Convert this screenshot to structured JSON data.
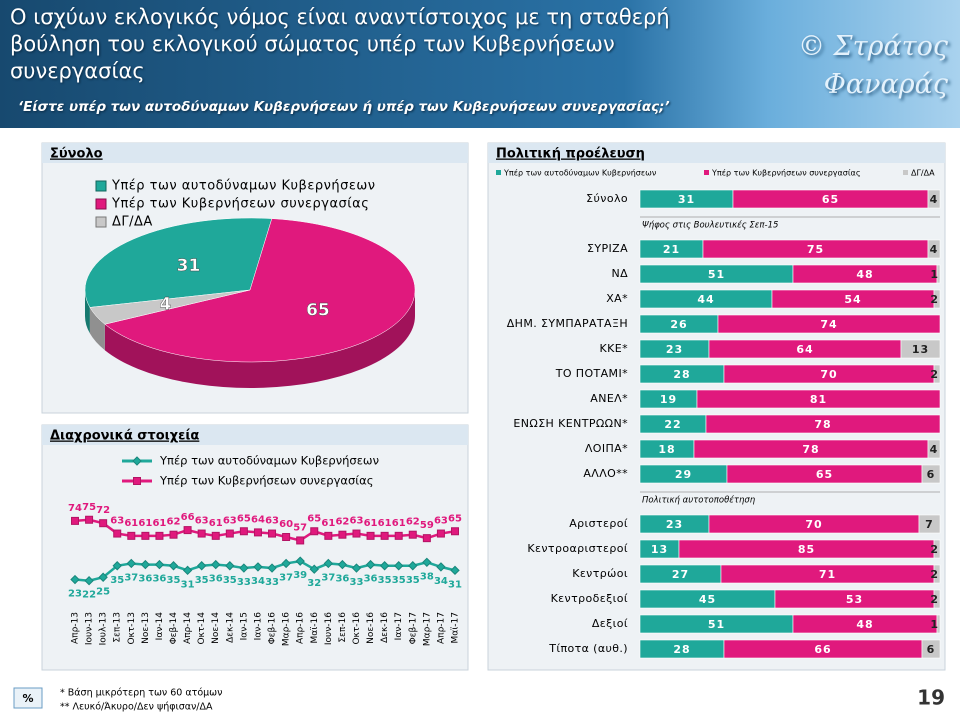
{
  "header": {
    "title": "Ο ισχύων εκλογικός νόμος είναι αναντίστοιχος με τη σταθερή βούληση του εκλογικού σώματος υπέρ των Κυβερνήσεων συνεργασίας",
    "subtitle": "‘Είστε υπέρ των αυτοδύναμων Κυβερνήσεων ή υπέρ των Κυβερνήσεων συνεργασίας;’",
    "author": "© Στράτος Φαναράς"
  },
  "footer": {
    "notes": [
      "*  Βάση μικρότερη των 60 ατόμων",
      "** Λευκό/Άκυρο/Δεν ψήφισαν/ΔΑ"
    ],
    "page": "19",
    "unit": "%"
  },
  "chart_data": [
    {
      "type": "pie",
      "title": "Σύνολο",
      "categories": [
        "Υπέρ των αυτοδύναμων Κυβερνήσεων",
        "Υπέρ των Κυβερνήσεων συνεργασίας",
        "ΔΓ/ΔΑ"
      ],
      "values": [
        31,
        65,
        4
      ],
      "colors": [
        "#1fa89a",
        "#e0197d",
        "#c8c8c8"
      ]
    },
    {
      "type": "line",
      "title": "Διαχρονικά στοιχεία",
      "categories": [
        "Απρ-13",
        "Ιουν-13",
        "Ιουλ-13",
        "Σεπ-13",
        "Οκτ-13",
        "Νοε-13",
        "Ιαν-14",
        "Φεβ-14",
        "Απρ-14",
        "Οκτ-14",
        "Νοε-14",
        "Δεκ-14",
        "Ιαν-15",
        "Ιαν-16",
        "Φεβ-16",
        "Μαρ-16",
        "Απρ-16",
        "Μαϊ-16",
        "Ιουν-16",
        "Σεπ-16",
        "Οκτ-16",
        "Νοε-16",
        "Δεκ-16",
        "Ιαν-17",
        "Φεβ-17",
        "Μαρ-17",
        "Απρ-17",
        "Μαϊ-17"
      ],
      "ylim": [
        0,
        100
      ],
      "series": [
        {
          "name": "Υπέρ των αυτοδύναμων Κυβερνήσεων",
          "color": "#1fa89a",
          "values": [
            23,
            22,
            25,
            35,
            37,
            36,
            36,
            35,
            31,
            35,
            36,
            35,
            33,
            34,
            33,
            37,
            39,
            32,
            37,
            36,
            33,
            36,
            35,
            35,
            35,
            38,
            34,
            31
          ]
        },
        {
          "name": "Υπέρ των Κυβερνήσεων συνεργασίας",
          "color": "#e0197d",
          "values": [
            74,
            75,
            72,
            63,
            61,
            61,
            61,
            62,
            66,
            63,
            61,
            63,
            65,
            64,
            63,
            60,
            57,
            65,
            61,
            62,
            63,
            61,
            61,
            61,
            62,
            59,
            63,
            65
          ]
        }
      ]
    },
    {
      "type": "hbar-stacked",
      "title": "Πολιτική προέλευση",
      "xlim": [
        0,
        100
      ],
      "categories": [
        "Σύνολο",
        "ΣΥΡΙΖΑ",
        "ΝΔ",
        "ΧΑ*",
        "ΔΗΜ. ΣΥΜΠΑΡΑΤΑΞΗ",
        "ΚΚΕ*",
        "ΤΟ ΠΟΤΑΜΙ*",
        "ΑΝΕΛ*",
        "ΕΝΩΣΗ ΚΕΝΤΡΩΩΝ*",
        "ΛΟΙΠΑ*",
        "ΑΛΛΟ**",
        "Αριστεροί",
        "Κεντροαριστεροί",
        "Κεντρώοι",
        "Κεντροδεξιοί",
        "Δεξιοί",
        "Τίποτα (αυθ.)"
      ],
      "sections": [
        {
          "label": "Ψήφος στις Βουλευτικές Σεπ-15",
          "start": 1
        },
        {
          "label": "Πολιτική αυτοτοποθέτηση",
          "start": 11
        }
      ],
      "series": [
        {
          "name": "Υπέρ των αυτοδύναμων Κυβερνήσεων",
          "color": "#1fa89a",
          "values": [
            31,
            21,
            51,
            44,
            26,
            23,
            28,
            19,
            22,
            18,
            29,
            23,
            13,
            27,
            45,
            51,
            28
          ]
        },
        {
          "name": "Υπέρ των Κυβερνήσεων συνεργασίας",
          "color": "#e0197d",
          "values": [
            65,
            75,
            48,
            54,
            74,
            64,
            70,
            81,
            78,
            78,
            65,
            70,
            85,
            71,
            53,
            48,
            66
          ]
        },
        {
          "name": "ΔΓ/ΔΑ",
          "color": "#c8c8c8",
          "values": [
            4,
            4,
            1,
            2,
            null,
            13,
            2,
            null,
            null,
            4,
            6,
            7,
            2,
            2,
            2,
            1,
            6
          ]
        }
      ]
    }
  ]
}
